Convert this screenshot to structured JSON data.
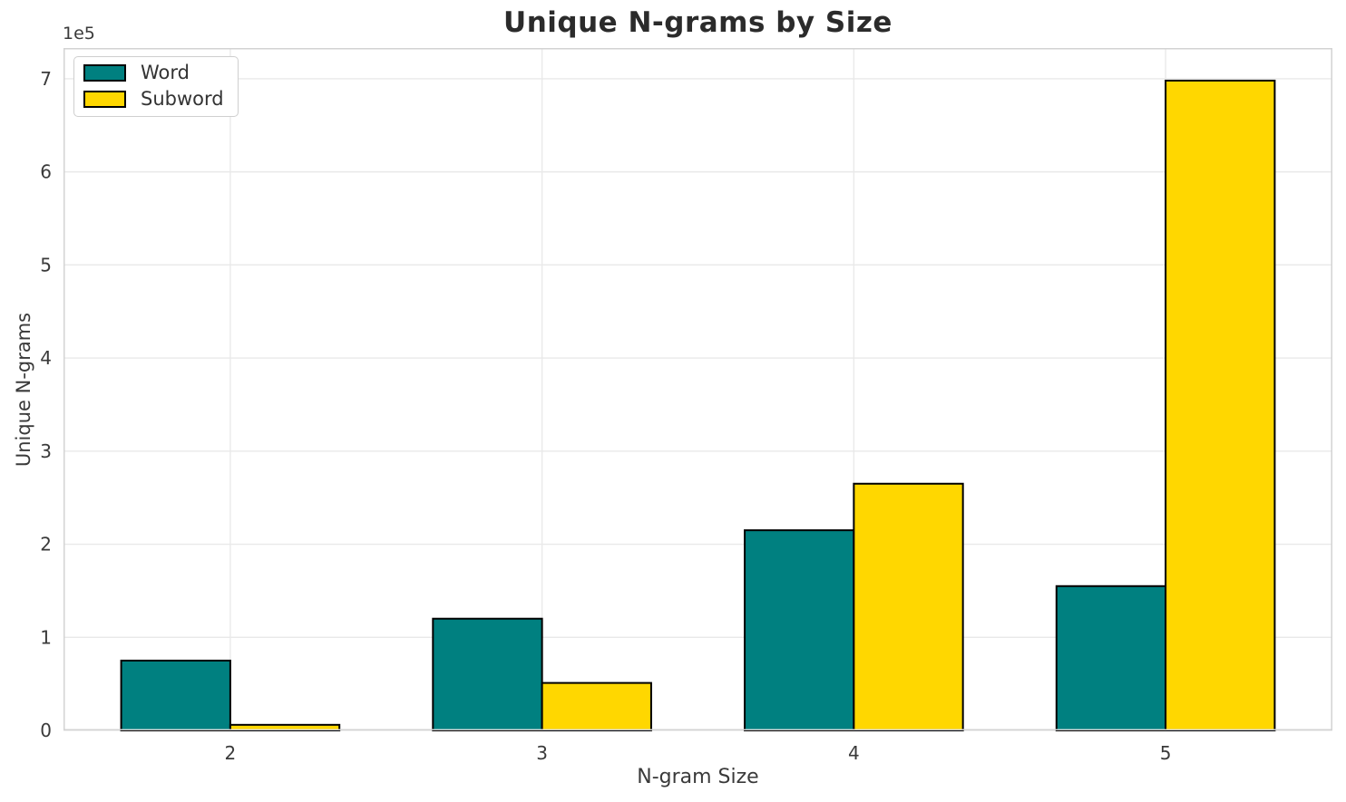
{
  "chart_data": {
    "type": "bar",
    "title": "Unique N-grams by Size",
    "xlabel": "N-gram Size",
    "ylabel": "Unique N-grams",
    "y_scale_offset_label": "1e5",
    "categories": [
      "2",
      "3",
      "4",
      "5"
    ],
    "series": [
      {
        "name": "Word",
        "color": "#008080",
        "edge_color": "#000000",
        "values": [
          75000,
          120000,
          215000,
          155000
        ]
      },
      {
        "name": "Subword",
        "color": "#FFD700",
        "edge_color": "#000000",
        "values": [
          6000,
          51000,
          265000,
          698000
        ]
      }
    ],
    "y_tick_values": [
      0,
      100000,
      200000,
      300000,
      400000,
      500000,
      600000,
      700000
    ],
    "y_tick_labels": [
      "0",
      "1",
      "2",
      "3",
      "4",
      "5",
      "6",
      "7"
    ],
    "ylim": [
      0,
      733000
    ],
    "grid": true,
    "legend_position": "upper left",
    "bar_width_fraction": 0.35,
    "grid_color": "#e9e9e9",
    "spine_color": "#d3d3d3",
    "text_color": "#3a3a3a"
  }
}
